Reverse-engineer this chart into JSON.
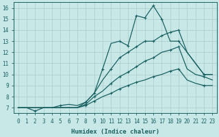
{
  "xlabel": "Humidex (Indice chaleur)",
  "bg_color": "#c8e8e8",
  "grid_color": "#b0d0d0",
  "line_color": "#1a6060",
  "xlim": [
    -0.5,
    23.5
  ],
  "ylim": [
    6.5,
    16.5
  ],
  "xticks": [
    0,
    1,
    2,
    3,
    4,
    5,
    6,
    7,
    8,
    9,
    10,
    11,
    12,
    13,
    14,
    15,
    16,
    17,
    18,
    19,
    20,
    21,
    22,
    23
  ],
  "yticks": [
    7,
    8,
    9,
    10,
    11,
    12,
    13,
    14,
    15,
    16
  ],
  "line1_x": [
    0,
    1,
    2,
    3,
    4,
    5,
    6,
    7,
    8,
    9,
    10,
    11,
    12,
    13,
    14,
    15,
    16,
    17,
    18,
    19,
    20,
    21,
    22,
    23
  ],
  "line1_y": [
    7.0,
    7.0,
    6.7,
    7.0,
    7.0,
    7.2,
    7.3,
    7.2,
    7.5,
    8.3,
    10.5,
    12.8,
    13.0,
    12.6,
    15.3,
    15.1,
    16.2,
    15.0,
    13.0,
    13.0,
    12.0,
    11.0,
    10.0,
    10.0
  ],
  "line2_x": [
    0,
    1,
    2,
    3,
    4,
    5,
    6,
    7,
    8,
    9,
    10,
    11,
    12,
    13,
    14,
    15,
    16,
    17,
    18,
    19,
    20,
    21,
    22,
    23
  ],
  "line2_y": [
    7.0,
    7.0,
    7.0,
    7.0,
    7.0,
    7.0,
    7.0,
    7.0,
    7.5,
    8.3,
    9.5,
    10.5,
    11.5,
    12.0,
    12.5,
    13.0,
    13.0,
    13.5,
    13.8,
    14.0,
    12.0,
    11.0,
    10.0,
    10.0
  ],
  "line3_x": [
    0,
    1,
    2,
    3,
    4,
    5,
    6,
    7,
    8,
    9,
    10,
    11,
    12,
    13,
    14,
    15,
    16,
    17,
    18,
    19,
    20,
    21,
    22,
    23
  ],
  "line3_y": [
    7.0,
    7.0,
    7.0,
    7.0,
    7.0,
    7.0,
    7.0,
    7.0,
    7.3,
    8.0,
    8.5,
    9.2,
    9.8,
    10.2,
    10.7,
    11.2,
    11.5,
    12.0,
    12.2,
    12.5,
    10.5,
    10.0,
    9.8,
    9.5
  ],
  "line4_x": [
    0,
    1,
    2,
    3,
    4,
    5,
    6,
    7,
    8,
    9,
    10,
    11,
    12,
    13,
    14,
    15,
    16,
    17,
    18,
    19,
    20,
    21,
    22,
    23
  ],
  "line4_y": [
    7.0,
    7.0,
    7.0,
    7.0,
    7.0,
    7.0,
    7.0,
    7.0,
    7.2,
    7.6,
    8.0,
    8.3,
    8.7,
    9.0,
    9.3,
    9.5,
    9.8,
    10.0,
    10.3,
    10.5,
    9.5,
    9.2,
    9.0,
    9.0
  ],
  "marker_x1": [
    2,
    5,
    8,
    10,
    12,
    13,
    14,
    15,
    16,
    17,
    19,
    22
  ],
  "marker_y1": [
    6.7,
    7.2,
    7.5,
    10.5,
    13.0,
    12.6,
    15.3,
    15.1,
    16.2,
    15.0,
    13.0,
    10.0
  ],
  "marker_x2": [
    8,
    9,
    11,
    12,
    13,
    14,
    15,
    16,
    17,
    18,
    19,
    22
  ],
  "marker_y2": [
    7.5,
    8.3,
    10.5,
    11.5,
    12.0,
    12.5,
    13.0,
    13.0,
    13.5,
    13.8,
    14.0,
    10.0
  ],
  "marker_x3": [
    8,
    9,
    11,
    12,
    13,
    14,
    15,
    16,
    18,
    19,
    22
  ],
  "marker_y3": [
    7.3,
    8.0,
    9.2,
    9.8,
    10.2,
    10.7,
    11.2,
    11.5,
    12.2,
    12.5,
    9.8
  ],
  "marker_x4": [
    8,
    9,
    11,
    12,
    13,
    14,
    16,
    18,
    19,
    22
  ],
  "marker_y4": [
    7.2,
    7.6,
    8.3,
    8.7,
    9.0,
    9.3,
    9.8,
    10.3,
    10.5,
    9.0
  ]
}
